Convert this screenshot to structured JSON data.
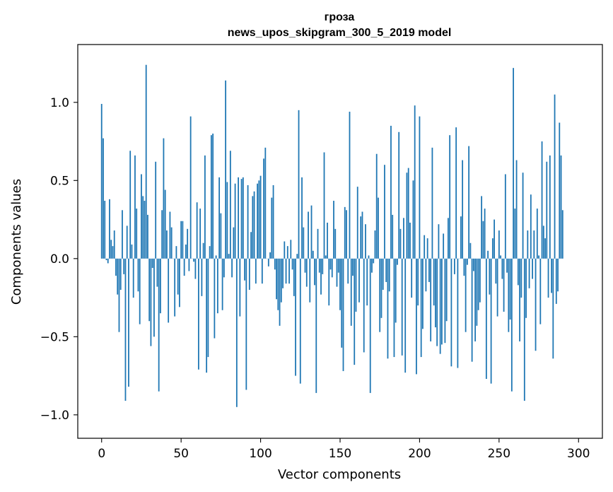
{
  "chart_data": {
    "type": "bar",
    "title": "гроза",
    "subtitle": "news_upos_skipgram_300_5_2019 model",
    "xlabel": "Vector components",
    "ylabel": "Components values",
    "xlim": [
      -15,
      315
    ],
    "ylim": [
      -1.15,
      1.37
    ],
    "xticks": [
      0,
      50,
      100,
      150,
      200,
      250,
      300
    ],
    "xtick_labels": [
      "0",
      "50",
      "100",
      "150",
      "200",
      "250",
      "300"
    ],
    "yticks": [
      -1.0,
      -0.5,
      0.0,
      0.5,
      1.0
    ],
    "ytick_labels": [
      "−1.0",
      "−0.5",
      "0.0",
      "0.5",
      "1.0"
    ],
    "bar_color": "#1f77b4",
    "grid": false,
    "values": [
      0.99,
      0.77,
      0.37,
      -0.01,
      -0.03,
      0.38,
      0.12,
      0.08,
      0.18,
      -0.11,
      -0.23,
      -0.47,
      -0.2,
      0.31,
      -0.1,
      -0.91,
      0.21,
      -0.82,
      0.69,
      0.09,
      -0.25,
      0.66,
      0.32,
      -0.21,
      -0.42,
      0.54,
      0.4,
      0.37,
      1.24,
      0.28,
      -0.4,
      -0.56,
      -0.06,
      -0.5,
      0.62,
      -0.18,
      -0.85,
      -0.35,
      0.31,
      0.77,
      0.44,
      0.18,
      -0.41,
      0.3,
      0.2,
      0.0,
      -0.37,
      0.08,
      -0.23,
      -0.31,
      0.24,
      0.24,
      -0.11,
      0.09,
      0.19,
      -0.08,
      0.91,
      0.0,
      -0.02,
      -0.13,
      0.36,
      -0.71,
      0.32,
      -0.24,
      0.1,
      0.66,
      -0.73,
      -0.63,
      0.08,
      0.79,
      0.8,
      -0.51,
      0.02,
      -0.35,
      0.52,
      0.29,
      -0.33,
      -0.12,
      1.14,
      0.49,
      0.03,
      0.69,
      -0.12,
      0.2,
      0.48,
      -0.95,
      0.52,
      -0.37,
      0.51,
      0.52,
      -0.14,
      -0.84,
      0.47,
      -0.2,
      0.17,
      0.4,
      0.43,
      -0.16,
      0.48,
      0.5,
      0.53,
      -0.16,
      0.64,
      0.71,
      0.0,
      -0.05,
      0.04,
      0.39,
      0.47,
      -0.07,
      -0.26,
      -0.33,
      -0.43,
      -0.28,
      -0.19,
      0.11,
      -0.16,
      0.08,
      -0.16,
      0.12,
      -0.07,
      -0.24,
      -0.75,
      0.03,
      0.95,
      -0.8,
      0.52,
      0.2,
      -0.09,
      -0.18,
      0.3,
      -0.28,
      0.34,
      0.05,
      -0.17,
      -0.86,
      0.19,
      -0.09,
      -0.23,
      -0.1,
      0.68,
      0.02,
      0.23,
      -0.3,
      -0.07,
      -0.12,
      0.37,
      0.19,
      -0.18,
      -0.09,
      -0.33,
      -0.57,
      -0.72,
      0.33,
      0.31,
      -0.16,
      0.94,
      -0.43,
      -0.11,
      -0.68,
      -0.34,
      0.46,
      -0.28,
      0.27,
      0.3,
      -0.6,
      0.22,
      -0.3,
      0.02,
      -0.86,
      -0.09,
      -0.03,
      0.18,
      0.67,
      0.39,
      -0.47,
      -0.38,
      -0.2,
      0.6,
      -0.15,
      -0.64,
      -0.21,
      0.85,
      0.28,
      -0.63,
      -0.41,
      -0.04,
      0.81,
      0.19,
      -0.62,
      0.26,
      -0.73,
      0.55,
      0.58,
      0.23,
      -0.25,
      0.5,
      0.98,
      -0.74,
      -0.3,
      0.91,
      -0.63,
      -0.45,
      0.15,
      -0.21,
      0.13,
      -0.15,
      -0.53,
      0.71,
      -0.3,
      -0.44,
      -0.56,
      0.22,
      -0.61,
      -0.55,
      0.16,
      -0.54,
      -0.4,
      0.26,
      0.79,
      -0.69,
      0.0,
      -0.1,
      0.84,
      -0.7,
      0.0,
      0.27,
      0.63,
      -0.11,
      -0.47,
      -0.04,
      0.72,
      0.1,
      -0.66,
      -0.08,
      -0.53,
      -0.43,
      -0.33,
      -0.28,
      0.4,
      0.24,
      0.32,
      -0.77,
      0.05,
      -0.23,
      -0.8,
      0.13,
      0.25,
      -0.16,
      -0.37,
      0.18,
      0.02,
      -0.13,
      -0.34,
      0.54,
      -0.09,
      -0.47,
      -0.39,
      -0.85,
      1.22,
      0.32,
      0.63,
      -0.17,
      -0.53,
      -0.25,
      0.55,
      -0.91,
      -0.38,
      0.18,
      -0.19,
      0.41,
      -0.13,
      0.18,
      -0.59,
      0.32,
      0.02,
      -0.42,
      0.75,
      0.21,
      0.13,
      0.62,
      -0.25,
      0.66,
      -0.22,
      -0.64,
      1.05,
      -0.29,
      -0.21,
      0.87,
      0.66,
      0.31
    ]
  }
}
